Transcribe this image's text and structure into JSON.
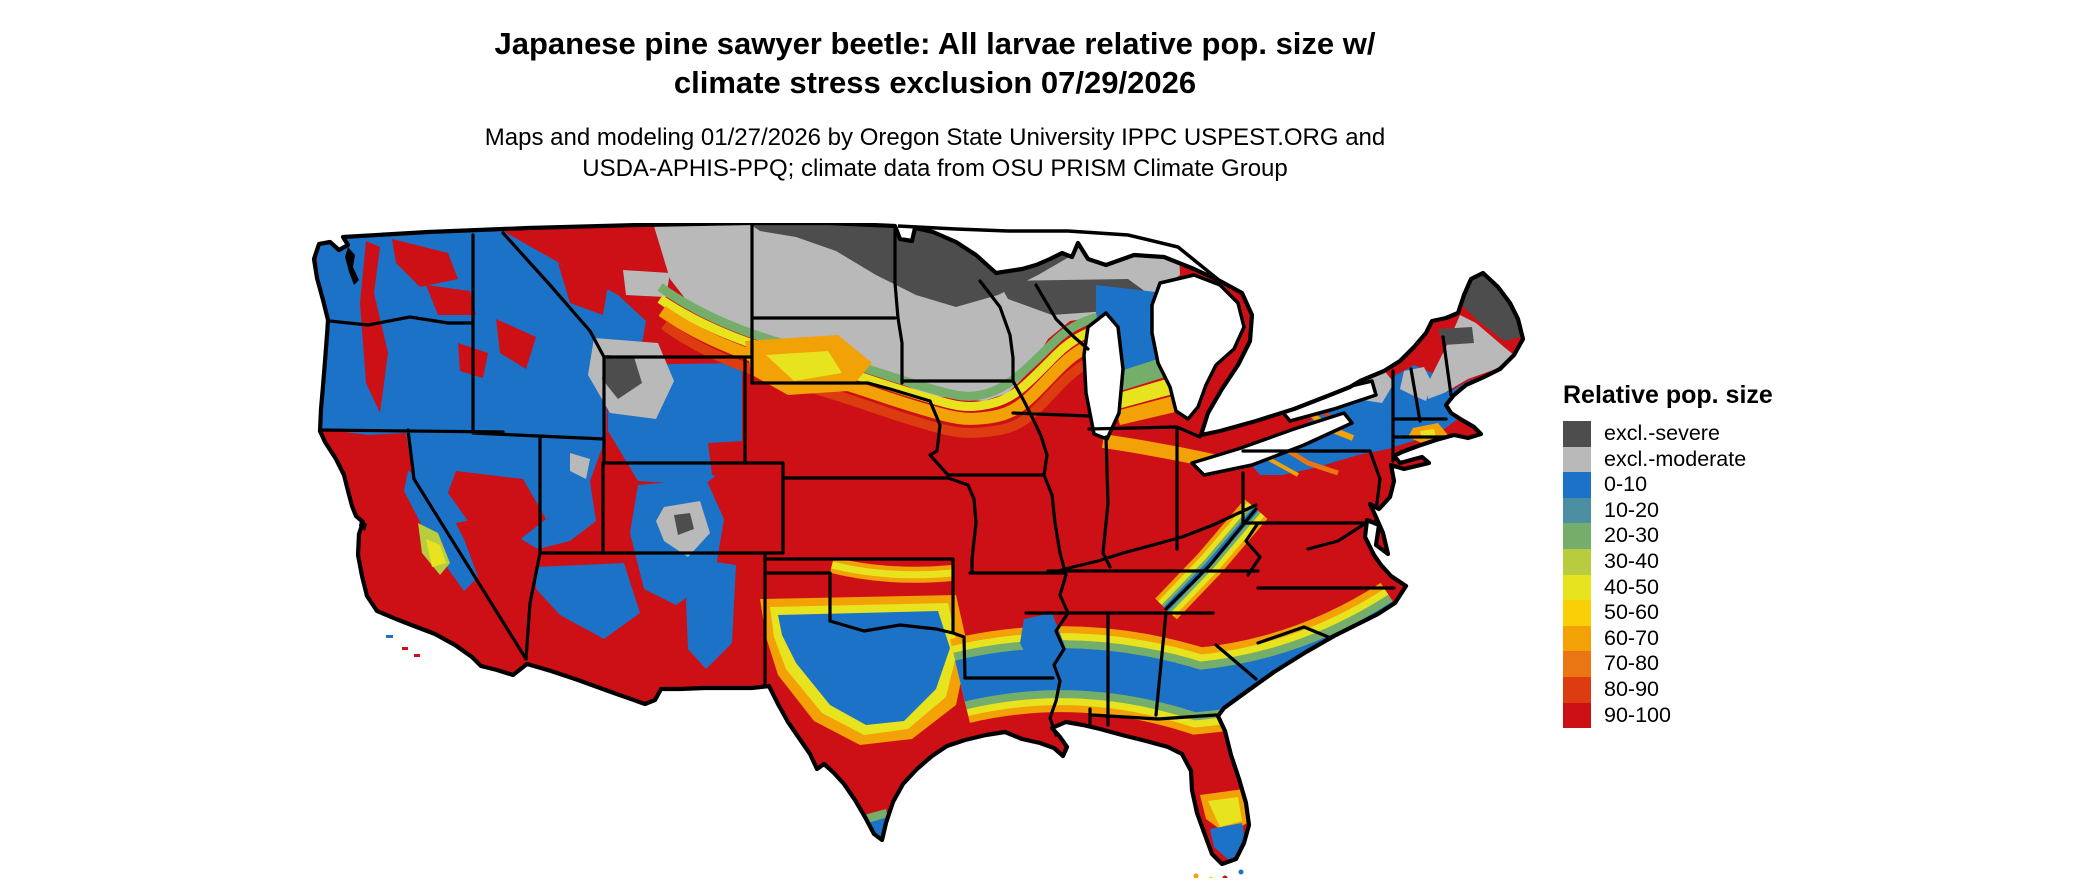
{
  "header": {
    "title_line1": "Japanese pine sawyer beetle: All larvae relative pop. size w/",
    "title_line2": "climate stress exclusion 07/29/2026",
    "subtitle_line1": "Maps and modeling 01/27/2026 by Oregon State University IPPC USPEST.ORG and",
    "subtitle_line2": "USDA-APHIS-PPQ; climate data from OSU PRISM Climate Group"
  },
  "legend": {
    "title": "Relative pop. size",
    "items": [
      {
        "label": "excl.-severe",
        "palette_key": "excl_severe"
      },
      {
        "label": "excl.-moderate",
        "palette_key": "excl_moderate"
      },
      {
        "label": "0-10",
        "palette_key": "p0_10"
      },
      {
        "label": "10-20",
        "palette_key": "p10_20"
      },
      {
        "label": "20-30",
        "palette_key": "p20_30"
      },
      {
        "label": "30-40",
        "palette_key": "p30_40"
      },
      {
        "label": "40-50",
        "palette_key": "p40_50"
      },
      {
        "label": "50-60",
        "palette_key": "p50_60"
      },
      {
        "label": "60-70",
        "palette_key": "p60_70"
      },
      {
        "label": "70-80",
        "palette_key": "p70_80"
      },
      {
        "label": "80-90",
        "palette_key": "p80_90"
      },
      {
        "label": "90-100",
        "palette_key": "p90_100"
      }
    ]
  },
  "palette": {
    "excl_severe": "#4d4d4d",
    "excl_moderate": "#b9b9b9",
    "p0_10": "#1c72c6",
    "p10_20": "#4d8fa2",
    "p20_30": "#75ad6b",
    "p30_40": "#b7cd3f",
    "p40_50": "#e7e41f",
    "p50_60": "#f9d005",
    "p60_70": "#f2a106",
    "p70_80": "#ea7513",
    "p80_90": "#dc3c10",
    "p90_100": "#cc1015",
    "outline": "#000000",
    "water": "#ffffff"
  }
}
